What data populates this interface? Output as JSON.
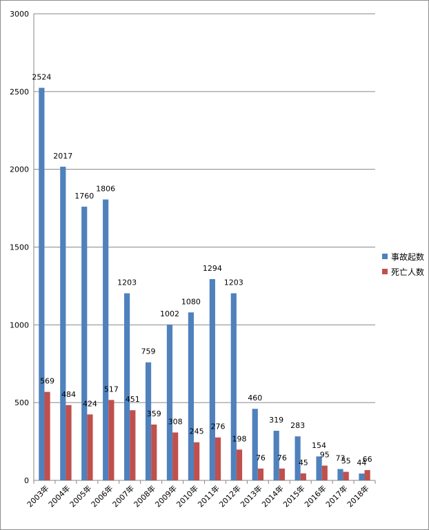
{
  "chart_data": {
    "type": "bar",
    "categories": [
      "2003年",
      "2004年",
      "2005年",
      "2006年",
      "2007年",
      "2008年",
      "2009年",
      "2010年",
      "2011年",
      "2012年",
      "2013年",
      "2014年",
      "2015年",
      "2016年",
      "2017年",
      "2018年"
    ],
    "series": [
      {
        "name": "事故起数",
        "color": "#4f81bd",
        "values": [
          2524,
          2017,
          1760,
          1806,
          1203,
          759,
          1002,
          1080,
          1294,
          1203,
          460,
          319,
          283,
          154,
          73,
          44
        ]
      },
      {
        "name": "死亡人数",
        "color": "#c0504d",
        "values": [
          569,
          484,
          424,
          517,
          451,
          359,
          308,
          245,
          276,
          198,
          76,
          76,
          45,
          95,
          55,
          66
        ]
      }
    ],
    "ylim": [
      0,
      3000
    ],
    "yticks": [
      0,
      500,
      1000,
      1500,
      2000,
      2500,
      3000
    ],
    "grid": true,
    "legend": "right",
    "title": "",
    "xlabel": "",
    "ylabel": ""
  }
}
